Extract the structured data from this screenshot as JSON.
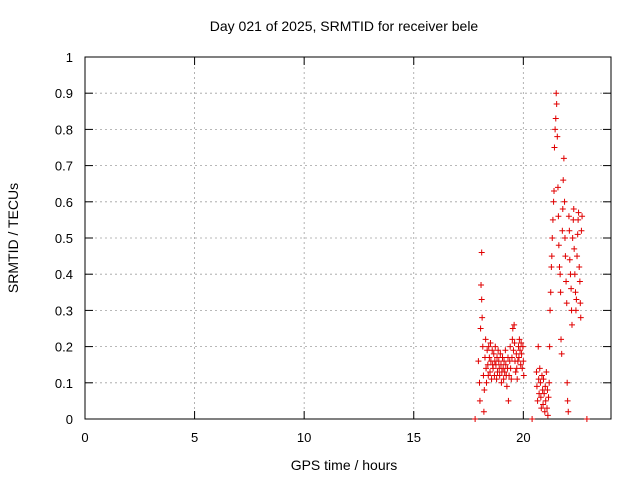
{
  "chart_data": {
    "type": "scatter",
    "title": "Day 021 of 2025, SRMTID for receiver bele",
    "xlabel": "GPS time / hours",
    "ylabel": "SRMTID / TECUs",
    "xlim": [
      0,
      24
    ],
    "ylim": [
      0,
      1
    ],
    "x_ticks": [
      0,
      5,
      10,
      15,
      20
    ],
    "y_ticks": [
      0,
      0.1,
      0.2,
      0.3,
      0.4,
      0.5,
      0.6,
      0.7,
      0.8,
      0.9,
      1
    ],
    "x_tick_labels": [
      "0",
      "5",
      "10",
      "15",
      "20"
    ],
    "y_tick_labels": [
      "0",
      "0.1",
      "0.2",
      "0.3",
      "0.4",
      "0.5",
      "0.6",
      "0.7",
      "0.8",
      "0.9",
      "1"
    ],
    "grid": true,
    "marker": "+",
    "color": "#e00000",
    "series": [
      {
        "name": "SRMTID",
        "points": [
          [
            17.8,
            0.0
          ],
          [
            20.4,
            0.0
          ],
          [
            22.9,
            0.0
          ],
          [
            17.95,
            0.16
          ],
          [
            18.0,
            0.1
          ],
          [
            18.02,
            0.05
          ],
          [
            18.05,
            0.25
          ],
          [
            18.07,
            0.37
          ],
          [
            18.1,
            0.46
          ],
          [
            18.1,
            0.33
          ],
          [
            18.12,
            0.28
          ],
          [
            18.15,
            0.2
          ],
          [
            18.18,
            0.12
          ],
          [
            18.2,
            0.02
          ],
          [
            18.22,
            0.08
          ],
          [
            18.25,
            0.17
          ],
          [
            18.28,
            0.22
          ],
          [
            18.3,
            0.14
          ],
          [
            18.32,
            0.1
          ],
          [
            18.35,
            0.19
          ],
          [
            18.38,
            0.15
          ],
          [
            18.4,
            0.12
          ],
          [
            18.42,
            0.2
          ],
          [
            18.45,
            0.17
          ],
          [
            18.48,
            0.13
          ],
          [
            18.5,
            0.21
          ],
          [
            18.52,
            0.16
          ],
          [
            18.55,
            0.11
          ],
          [
            18.58,
            0.19
          ],
          [
            18.6,
            0.15
          ],
          [
            18.62,
            0.14
          ],
          [
            18.65,
            0.18
          ],
          [
            18.68,
            0.12
          ],
          [
            18.7,
            0.16
          ],
          [
            18.72,
            0.2
          ],
          [
            18.75,
            0.15
          ],
          [
            18.78,
            0.11
          ],
          [
            18.8,
            0.17
          ],
          [
            18.82,
            0.13
          ],
          [
            18.85,
            0.19
          ],
          [
            18.88,
            0.16
          ],
          [
            18.9,
            0.14
          ],
          [
            18.92,
            0.12
          ],
          [
            18.95,
            0.18
          ],
          [
            18.98,
            0.15
          ],
          [
            19.0,
            0.1
          ],
          [
            19.02,
            0.13
          ],
          [
            19.05,
            0.17
          ],
          [
            19.08,
            0.14
          ],
          [
            19.1,
            0.11
          ],
          [
            19.12,
            0.16
          ],
          [
            19.15,
            0.13
          ],
          [
            19.18,
            0.19
          ],
          [
            19.2,
            0.15
          ],
          [
            19.22,
            0.12
          ],
          [
            19.25,
            0.09
          ],
          [
            19.28,
            0.14
          ],
          [
            19.3,
            0.17
          ],
          [
            19.32,
            0.05
          ],
          [
            19.35,
            0.12
          ],
          [
            19.38,
            0.16
          ],
          [
            19.4,
            0.2
          ],
          [
            19.42,
            0.14
          ],
          [
            19.45,
            0.11
          ],
          [
            19.48,
            0.17
          ],
          [
            19.5,
            0.22
          ],
          [
            19.52,
            0.25
          ],
          [
            19.55,
            0.19
          ],
          [
            19.58,
            0.26
          ],
          [
            19.6,
            0.21
          ],
          [
            19.62,
            0.16
          ],
          [
            19.65,
            0.13
          ],
          [
            19.68,
            0.18
          ],
          [
            19.7,
            0.14
          ],
          [
            19.72,
            0.11
          ],
          [
            19.75,
            0.16
          ],
          [
            19.78,
            0.2
          ],
          [
            19.8,
            0.17
          ],
          [
            19.82,
            0.22
          ],
          [
            19.85,
            0.19
          ],
          [
            19.88,
            0.15
          ],
          [
            19.9,
            0.21
          ],
          [
            19.92,
            0.18
          ],
          [
            19.95,
            0.14
          ],
          [
            19.98,
            0.2
          ],
          [
            20.0,
            0.16
          ],
          [
            20.02,
            0.12
          ],
          [
            20.6,
            0.13
          ],
          [
            20.62,
            0.09
          ],
          [
            20.65,
            0.05
          ],
          [
            20.68,
            0.2
          ],
          [
            20.7,
            0.11
          ],
          [
            20.72,
            0.07
          ],
          [
            20.75,
            0.14
          ],
          [
            20.78,
            0.1
          ],
          [
            20.8,
            0.06
          ],
          [
            20.82,
            0.03
          ],
          [
            20.85,
            0.12
          ],
          [
            20.88,
            0.08
          ],
          [
            20.9,
            0.04
          ],
          [
            20.92,
            0.11
          ],
          [
            20.95,
            0.07
          ],
          [
            20.98,
            0.02
          ],
          [
            21.0,
            0.09
          ],
          [
            21.02,
            0.05
          ],
          [
            21.05,
            0.13
          ],
          [
            21.08,
            0.03
          ],
          [
            21.1,
            0.08
          ],
          [
            21.12,
            0.01
          ],
          [
            21.15,
            0.06
          ],
          [
            21.18,
            0.1
          ],
          [
            21.2,
            0.2
          ],
          [
            21.22,
            0.3
          ],
          [
            21.25,
            0.35
          ],
          [
            21.28,
            0.42
          ],
          [
            21.3,
            0.45
          ],
          [
            21.32,
            0.5
          ],
          [
            21.35,
            0.55
          ],
          [
            21.38,
            0.6
          ],
          [
            21.4,
            0.63
          ],
          [
            21.42,
            0.75
          ],
          [
            21.45,
            0.8
          ],
          [
            21.48,
            0.83
          ],
          [
            21.5,
            0.9
          ],
          [
            21.52,
            0.87
          ],
          [
            21.55,
            0.78
          ],
          [
            21.58,
            0.64
          ],
          [
            21.6,
            0.56
          ],
          [
            21.62,
            0.48
          ],
          [
            21.65,
            0.42
          ],
          [
            21.68,
            0.4
          ],
          [
            21.7,
            0.35
          ],
          [
            21.72,
            0.22
          ],
          [
            21.75,
            0.18
          ],
          [
            21.78,
            0.52
          ],
          [
            21.8,
            0.58
          ],
          [
            21.82,
            0.66
          ],
          [
            21.85,
            0.72
          ],
          [
            21.88,
            0.6
          ],
          [
            21.9,
            0.5
          ],
          [
            21.92,
            0.45
          ],
          [
            21.95,
            0.38
          ],
          [
            21.98,
            0.32
          ],
          [
            22.0,
            0.1
          ],
          [
            22.02,
            0.05
          ],
          [
            22.05,
            0.02
          ],
          [
            22.08,
            0.56
          ],
          [
            22.1,
            0.52
          ],
          [
            22.12,
            0.44
          ],
          [
            22.15,
            0.4
          ],
          [
            22.18,
            0.36
          ],
          [
            22.2,
            0.3
          ],
          [
            22.22,
            0.26
          ],
          [
            22.25,
            0.5
          ],
          [
            22.28,
            0.55
          ],
          [
            22.3,
            0.58
          ],
          [
            22.32,
            0.47
          ],
          [
            22.35,
            0.4
          ],
          [
            22.38,
            0.35
          ],
          [
            22.4,
            0.3
          ],
          [
            22.42,
            0.33
          ],
          [
            22.45,
            0.45
          ],
          [
            22.48,
            0.51
          ],
          [
            22.5,
            0.55
          ],
          [
            22.52,
            0.57
          ],
          [
            22.55,
            0.42
          ],
          [
            22.58,
            0.38
          ],
          [
            22.6,
            0.32
          ],
          [
            22.62,
            0.28
          ],
          [
            22.65,
            0.52
          ],
          [
            22.68,
            0.56
          ]
        ]
      }
    ]
  }
}
